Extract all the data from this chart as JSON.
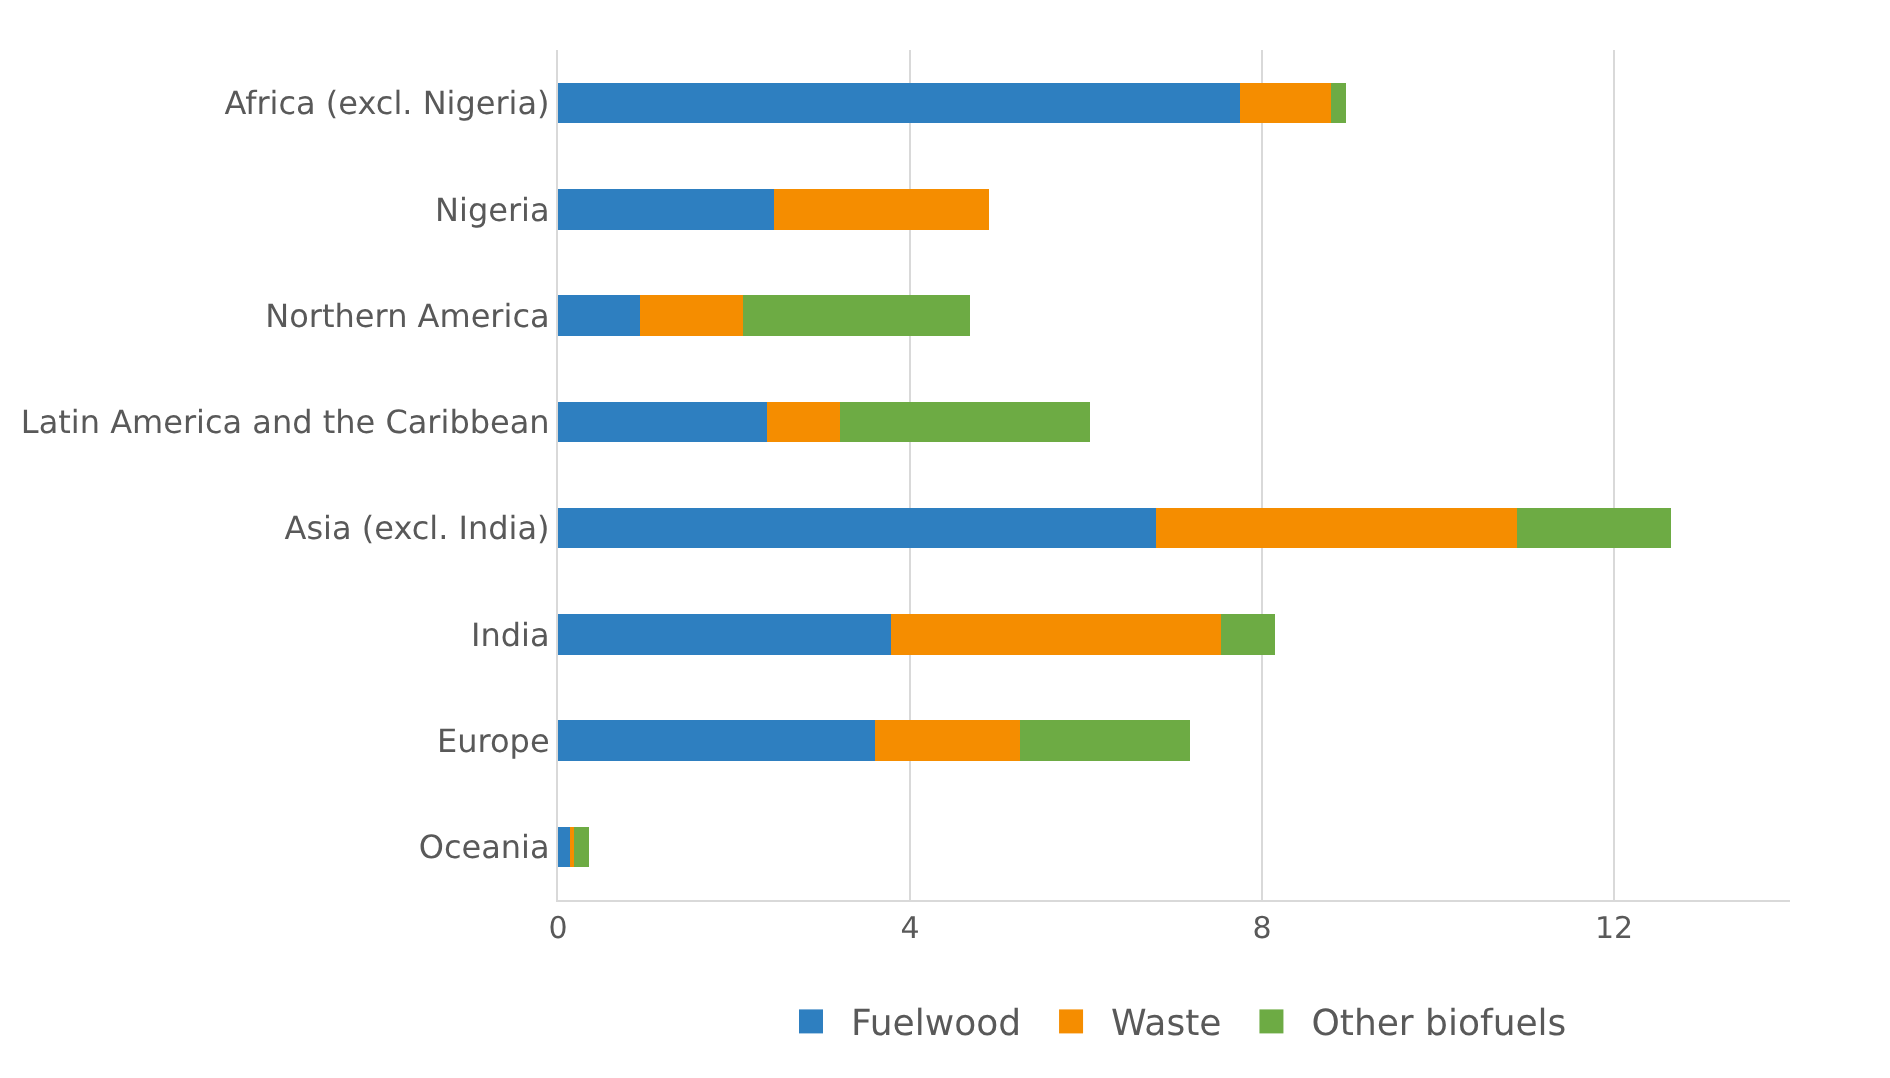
{
  "chart_data": {
    "type": "bar",
    "orientation": "horizontal",
    "stacked": true,
    "categories": [
      "Africa (excl. Nigeria)",
      "Nigeria",
      "Northern America",
      "Latin America and the Caribbean",
      "Asia (excl. India)",
      "India",
      "Europe",
      "Oceania"
    ],
    "series": [
      {
        "name": "Fuelwood",
        "color": "#2e7fc0",
        "values": [
          7.75,
          2.45,
          0.93,
          2.38,
          6.8,
          3.78,
          3.6,
          0.15
        ]
      },
      {
        "name": "Waste",
        "color": "#f58d00",
        "values": [
          1.03,
          2.45,
          1.17,
          0.82,
          4.1,
          3.75,
          1.65,
          0.03
        ]
      },
      {
        "name": "Other biofuels",
        "color": "#6dab44",
        "values": [
          0.17,
          0,
          2.58,
          2.85,
          1.75,
          0.62,
          1.93,
          0.17
        ]
      }
    ],
    "xlim": [
      0,
      14
    ],
    "xticks": [
      0,
      4,
      8,
      12
    ],
    "grid": "x",
    "legend": "bottom"
  }
}
